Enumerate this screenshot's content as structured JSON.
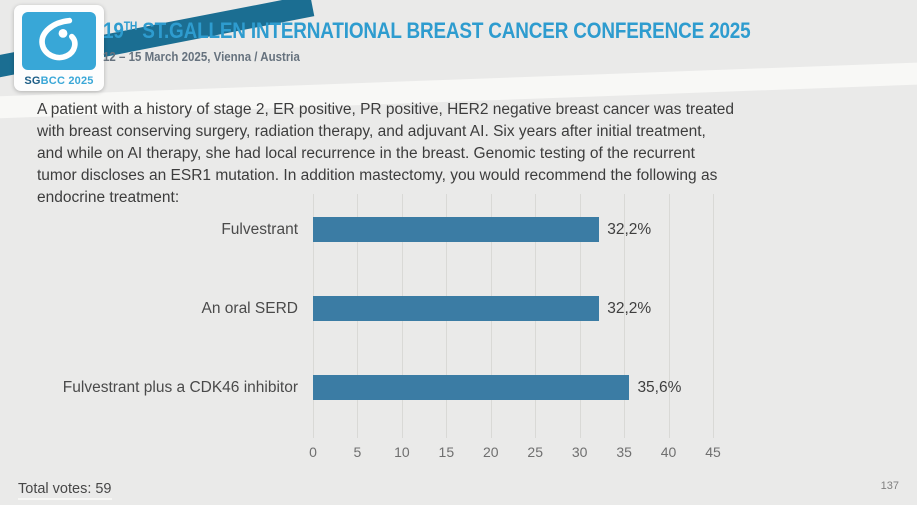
{
  "header": {
    "logo": {
      "sg": "SG",
      "rest": "BCC 2025",
      "square_color": "#38a7d7",
      "icon": "breast-droplet-icon"
    },
    "title_number": "19",
    "title_ordinal": "TH",
    "title_rest": " ST.GALLEN INTERNATIONAL BREAST CANCER CONFERENCE 2025",
    "subtitle": "12 – 15 March 2025, Vienna / Austria",
    "title_color": "#2e9ccf",
    "ribbon_color": "#1b6e92"
  },
  "question": {
    "lines": [
      "A patient with a history of stage 2, ER positive, PR positive, HER2 negative breast cancer was treated",
      "with breast conserving surgery, radiation therapy, and adjuvant AI.  Six years after initial treatment,",
      "and while on AI therapy, she had local recurrence in the breast.  Genomic testing of the recurrent",
      "tumor discloses an ESR1 mutation.  In addition mastectomy, you would recommend the following as",
      "endocrine treatment:"
    ]
  },
  "chart_data": {
    "type": "bar",
    "orientation": "horizontal",
    "categories": [
      "Fulvestrant",
      "An oral SERD",
      "Fulvestrant plus a CDK46 inhibitor"
    ],
    "values": [
      32.2,
      32.2,
      35.6
    ],
    "value_labels": [
      "32,2%",
      "32,2%",
      "35,6%"
    ],
    "xlim": [
      0,
      45
    ],
    "x_ticks": [
      0,
      5,
      10,
      15,
      20,
      25,
      30,
      35,
      40,
      45
    ],
    "bar_color": "#3b7ca4",
    "grid": true,
    "legend": "none",
    "title": ""
  },
  "footer": {
    "total_votes": "Total votes: 59",
    "page_number": "137"
  }
}
